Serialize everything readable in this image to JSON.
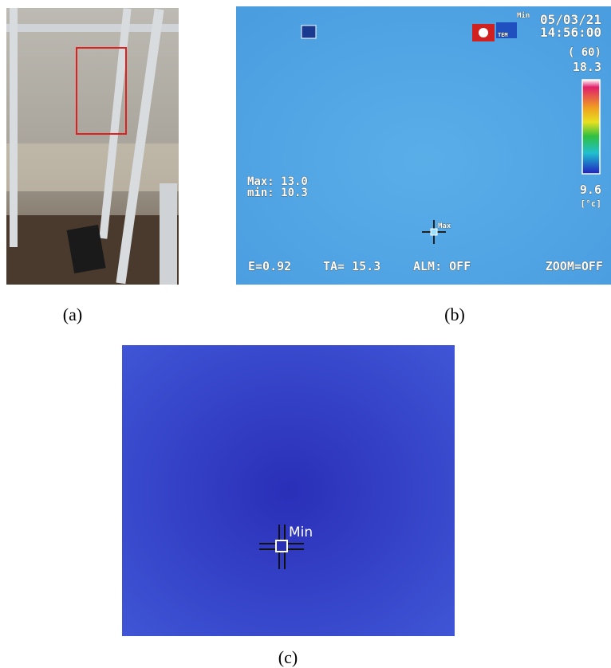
{
  "panels": [
    {
      "caption": "(a)"
    },
    {
      "caption": "(b)",
      "date": "05/03/21",
      "time": "14:56:00",
      "frame": "( 60)",
      "scale_max": "18.3",
      "scale_min": "9.6",
      "unit": "[°c]",
      "max_label": "Max: 13.0",
      "min_label": "min: 10.3",
      "cursor_label": "Max",
      "icon_label": "TEM",
      "corner_label": "Min",
      "emissivity": "E=0.92",
      "ambient": "TA= 15.3",
      "alarm": "ALM: OFF",
      "zoom": "ZOOM=OFF"
    },
    {
      "caption": "(c)",
      "cursor_label": "Min"
    }
  ]
}
